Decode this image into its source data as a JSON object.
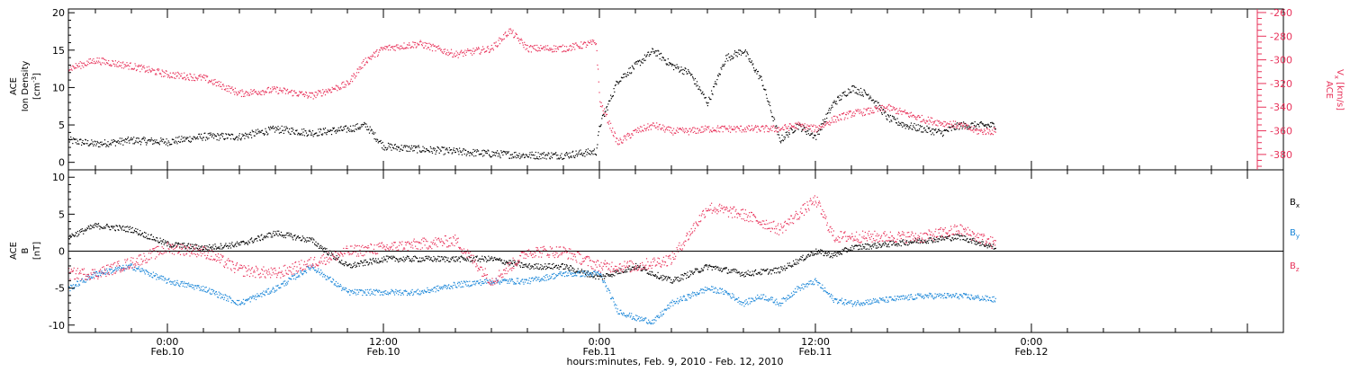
{
  "colors": {
    "black": "#000000",
    "pink": "#e8325a",
    "blue": "#1a86d8"
  },
  "time_axis": {
    "xlabel": "hours:minutes, Feb.  9, 2010 - Feb. 12, 2010",
    "range_hours": [
      -5.5,
      62
    ],
    "ticks": [
      {
        "hour": 0,
        "time": "0:00",
        "date": "Feb.10"
      },
      {
        "hour": 12,
        "time": "12:00",
        "date": "Feb.10"
      },
      {
        "hour": 24,
        "time": "0:00",
        "date": "Feb.11"
      },
      {
        "hour": 36,
        "time": "12:00",
        "date": "Feb.11"
      },
      {
        "hour": 48,
        "time": "0:00",
        "date": "Feb.12"
      }
    ]
  },
  "panels": {
    "top": {
      "left_axis": {
        "label_top": "ACE",
        "label_mid": "Ion Density",
        "label_unit": "[cm",
        "label_unit_sup": "-3",
        "label_unit_end": "]",
        "ylim": [
          -1,
          20.5
        ],
        "ticks": [
          "0",
          "5",
          "10",
          "15",
          "20"
        ]
      },
      "right_axis": {
        "label_top": "ACE",
        "label_main": "V",
        "label_sub": "x",
        "label_unit": "[km/s]",
        "ylim": [
          -393,
          -257
        ],
        "ticks": [
          "-380",
          "-360",
          "-340",
          "-320",
          "-300",
          "-280",
          "-260"
        ]
      }
    },
    "bottom": {
      "left_axis": {
        "label_top": "ACE",
        "label_mid": "B",
        "label_unit": "[nT]",
        "ylim": [
          -11,
          11
        ],
        "ticks": [
          "-10",
          "-5",
          "0",
          "5",
          "10"
        ]
      },
      "legend": [
        {
          "main": "B",
          "sub": "x",
          "color": "#000000"
        },
        {
          "main": "B",
          "sub": "y",
          "color": "#1a86d8"
        },
        {
          "main": "B",
          "sub": "z",
          "color": "#e8325a"
        }
      ]
    }
  },
  "chart_data": {
    "type": "scatter",
    "x_units": "hours from Feb.10 0:00",
    "series": [
      {
        "panel": "top",
        "axis": "left",
        "color": "#000000",
        "spread": 0.5,
        "x": [
          -5.5,
          -4,
          -2,
          0,
          2,
          4,
          6,
          8,
          10,
          11,
          12,
          14,
          16,
          18,
          20,
          22,
          23.8,
          24,
          25,
          26,
          27,
          28,
          29,
          30,
          31,
          32,
          33,
          34,
          35,
          36,
          37,
          38,
          39,
          40,
          41,
          42,
          43,
          44,
          45,
          46
        ],
        "y": [
          3,
          2.5,
          3,
          2.8,
          3.5,
          3.5,
          4.5,
          4,
          4.5,
          5,
          2.2,
          1.8,
          1.5,
          1.2,
          1,
          1,
          1.5,
          5,
          11,
          13,
          15,
          13,
          12,
          8,
          14,
          15,
          11,
          3,
          5,
          3.5,
          8,
          10,
          9,
          6,
          5,
          4.5,
          4,
          5,
          5,
          5
        ]
      },
      {
        "panel": "top",
        "axis": "right",
        "color": "#e8325a",
        "spread": 3,
        "x": [
          -5.5,
          -4,
          -2,
          0,
          2,
          4,
          6,
          8,
          10,
          11,
          12,
          14,
          16,
          18,
          19,
          20,
          22,
          23.8,
          24,
          25,
          26,
          27,
          28,
          29,
          30,
          31,
          32,
          33,
          34,
          35,
          36,
          37,
          38,
          39,
          40,
          41,
          42,
          43,
          44,
          45,
          46
        ],
        "y": [
          -307,
          -300,
          -305,
          -312,
          -315,
          -328,
          -325,
          -330,
          -320,
          -300,
          -290,
          -286,
          -295,
          -290,
          -275,
          -290,
          -290,
          -285,
          -335,
          -370,
          -360,
          -355,
          -360,
          -360,
          -358,
          -358,
          -358,
          -358,
          -358,
          -355,
          -358,
          -350,
          -345,
          -343,
          -340,
          -345,
          -350,
          -353,
          -355,
          -360,
          -360
        ]
      },
      {
        "panel": "bottom",
        "axis": "left",
        "color": "#000000",
        "spread": 0.4,
        "x": [
          -5.5,
          -4,
          -2,
          0,
          2,
          4,
          6,
          8,
          10,
          12,
          14,
          16,
          18,
          20,
          22,
          24,
          26,
          28,
          30,
          32,
          34,
          36,
          37,
          38,
          40,
          42,
          44,
          46
        ],
        "y": [
          2,
          3.5,
          3,
          1,
          0.5,
          1,
          2.5,
          1.5,
          -2,
          -1,
          -1,
          -1,
          -1,
          -2,
          -2,
          -3.5,
          -2,
          -4,
          -2,
          -3,
          -2.5,
          0,
          -0.5,
          0.5,
          1,
          1.5,
          2,
          0.5
        ]
      },
      {
        "panel": "bottom",
        "axis": "left",
        "color": "#1a86d8",
        "spread": 0.4,
        "x": [
          -5.5,
          -4,
          -2,
          0,
          2,
          4,
          6,
          8,
          10,
          12,
          14,
          16,
          18,
          20,
          22,
          24,
          25,
          26,
          27,
          28,
          29,
          30,
          31,
          32,
          33,
          34,
          35,
          36,
          37,
          38,
          40,
          42,
          44,
          46
        ],
        "y": [
          -5,
          -3,
          -2,
          -4,
          -5,
          -7,
          -5,
          -2,
          -5.5,
          -5.5,
          -5.5,
          -4.5,
          -4,
          -4,
          -3,
          -3,
          -8,
          -9,
          -9.5,
          -7,
          -6,
          -5,
          -5.5,
          -7,
          -6,
          -7,
          -5,
          -4,
          -6.5,
          -7,
          -6.5,
          -6,
          -6,
          -6.5
        ]
      },
      {
        "panel": "bottom",
        "axis": "left",
        "color": "#e8325a",
        "spread": 0.8,
        "x": [
          -5.5,
          -4,
          -2,
          0,
          2,
          4,
          6,
          8,
          10,
          12,
          14,
          16,
          18,
          20,
          22,
          24,
          26,
          28,
          30,
          32,
          34,
          36,
          37,
          38,
          40,
          42,
          44,
          46
        ],
        "y": [
          -3,
          -3,
          -1.5,
          0.5,
          0,
          -2.5,
          -3,
          -1.5,
          0,
          0.5,
          1,
          1.5,
          -4,
          0,
          0,
          -2,
          -2,
          -1,
          6,
          5,
          3,
          7,
          2,
          2,
          2,
          2,
          3,
          1
        ]
      }
    ]
  }
}
